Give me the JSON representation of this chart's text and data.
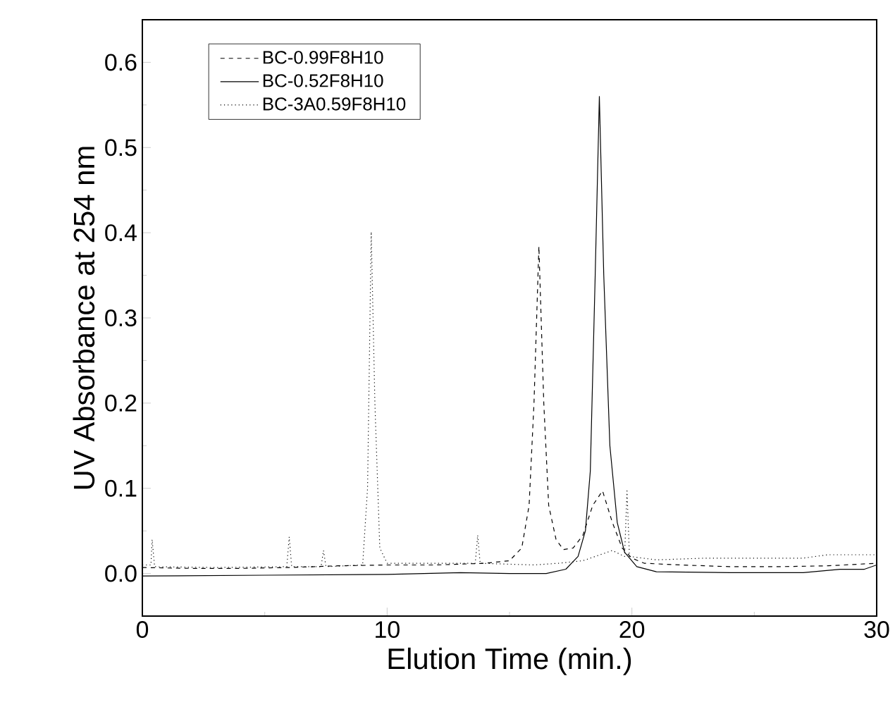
{
  "chart_data": {
    "type": "line",
    "xlabel": "Elution Time (min.)",
    "ylabel": "UV Absorbance at 254 nm",
    "xlim": [
      0,
      30
    ],
    "xticks": [
      0,
      10,
      20,
      30
    ],
    "ylim": [
      -0.05,
      0.65
    ],
    "yticks": [
      {
        "value": 0,
        "label": "0.0"
      },
      {
        "value": 0.1,
        "label": "0.1"
      },
      {
        "value": 0.2,
        "label": "0.2"
      },
      {
        "value": 0.3,
        "label": "0.3"
      },
      {
        "value": 0.4,
        "label": "0.4"
      },
      {
        "value": 0.5,
        "label": "0.5"
      },
      {
        "value": 0.6,
        "label": "0.6"
      }
    ],
    "legend": "top left",
    "grid": false,
    "series": [
      {
        "name": "BC-0.99F8H10",
        "color": "#000000",
        "line_style": "dashed",
        "x": [
          0,
          2,
          4,
          6,
          8,
          10,
          12,
          14,
          15,
          15.5,
          15.8,
          16.0,
          16.2,
          16.4,
          16.6,
          16.9,
          17.2,
          17.6,
          18.0,
          18.4,
          18.8,
          19.2,
          19.6,
          20.0,
          20.5,
          22,
          24,
          26,
          28,
          30
        ],
        "values": [
          0.007,
          0.006,
          0.006,
          0.007,
          0.009,
          0.01,
          0.01,
          0.012,
          0.015,
          0.03,
          0.08,
          0.2,
          0.384,
          0.2,
          0.08,
          0.04,
          0.028,
          0.03,
          0.045,
          0.08,
          0.097,
          0.06,
          0.03,
          0.018,
          0.012,
          0.01,
          0.008,
          0.008,
          0.009,
          0.012
        ]
      },
      {
        "name": "BC-0.52F8H10",
        "color": "#000000",
        "line_style": "solid",
        "x": [
          0,
          5,
          10,
          13,
          15,
          16.5,
          17.3,
          17.8,
          18.1,
          18.3,
          18.5,
          18.67,
          18.85,
          19.1,
          19.4,
          19.7,
          20.2,
          21,
          24,
          27,
          28.5,
          29.5,
          30
        ],
        "values": [
          -0.003,
          -0.002,
          -0.001,
          0.001,
          0.0,
          0.0,
          0.005,
          0.02,
          0.05,
          0.12,
          0.35,
          0.56,
          0.35,
          0.15,
          0.06,
          0.025,
          0.008,
          0.002,
          0.001,
          0.001,
          0.005,
          0.005,
          0.01
        ]
      },
      {
        "name": "BC-3A0.59F8H10",
        "color": "#000000",
        "line_style": "dotted",
        "x": [
          0,
          0.35,
          0.4,
          0.5,
          3,
          5.9,
          6.0,
          6.1,
          7.3,
          7.4,
          7.5,
          9.0,
          9.2,
          9.35,
          9.5,
          9.7,
          10,
          12,
          13.6,
          13.7,
          13.8,
          16,
          17,
          18,
          19.2,
          19.7,
          19.8,
          19.9,
          21,
          23,
          25,
          27,
          28,
          30
        ],
        "values": [
          0.01,
          0.01,
          0.04,
          0.008,
          0.007,
          0.008,
          0.043,
          0.008,
          0.008,
          0.027,
          0.008,
          0.01,
          0.1,
          0.401,
          0.2,
          0.03,
          0.012,
          0.012,
          0.012,
          0.045,
          0.012,
          0.01,
          0.012,
          0.015,
          0.027,
          0.02,
          0.097,
          0.02,
          0.016,
          0.018,
          0.018,
          0.018,
          0.022,
          0.022
        ]
      }
    ]
  }
}
